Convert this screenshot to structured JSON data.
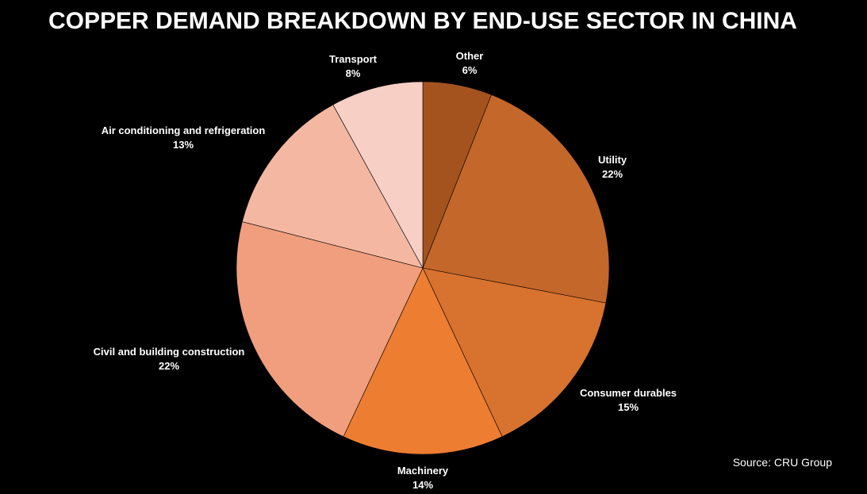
{
  "chart_data": {
    "type": "pie",
    "title": "COPPER DEMAND BREAKDOWN BY END-USE SECTOR IN CHINA",
    "slices": [
      {
        "name": "Other",
        "value": 6,
        "label": "6%",
        "color": "#a4531f"
      },
      {
        "name": "Utility",
        "value": 22,
        "label": "22%",
        "color": "#c4672a"
      },
      {
        "name": "Consumer durables",
        "value": 15,
        "label": "15%",
        "color": "#d7722f"
      },
      {
        "name": "Machinery",
        "value": 14,
        "label": "14%",
        "color": "#ed7d31"
      },
      {
        "name": "Civil and building construction",
        "value": 22,
        "label": "22%",
        "color": "#f09e7d"
      },
      {
        "name": "Air conditioning and refrigeration",
        "value": 13,
        "label": "13%",
        "color": "#f4b8a2"
      },
      {
        "name": "Transport",
        "value": 8,
        "label": "8%",
        "color": "#f8cfc4"
      }
    ],
    "legend": "none",
    "source": "Source: CRU Group"
  }
}
